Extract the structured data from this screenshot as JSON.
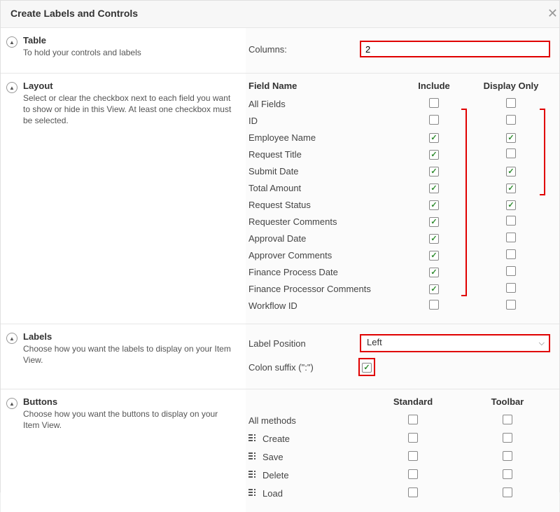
{
  "dialog": {
    "title": "Create Labels and Controls",
    "close_glyph": "✕"
  },
  "table_section": {
    "title": "Table",
    "desc": "To hold your controls and labels",
    "columns_label": "Columns:",
    "columns_value": "2",
    "highlight_columns": true
  },
  "layout_section": {
    "title": "Layout",
    "desc": "Select or clear the checkbox next to each field you want to show or hide in this View. At least one checkbox must be selected.",
    "header_name": "Field Name",
    "header_include": "Include",
    "header_display_only": "Display Only",
    "fields": [
      {
        "name": "All Fields",
        "include": false,
        "display_only": false
      },
      {
        "name": "ID",
        "include": false,
        "display_only": false
      },
      {
        "name": "Employee Name",
        "include": true,
        "display_only": true
      },
      {
        "name": "Request Title",
        "include": true,
        "display_only": false
      },
      {
        "name": "Submit Date",
        "include": true,
        "display_only": true
      },
      {
        "name": "Total Amount",
        "include": true,
        "display_only": true
      },
      {
        "name": "Request Status",
        "include": true,
        "display_only": true
      },
      {
        "name": "Requester Comments",
        "include": true,
        "display_only": false
      },
      {
        "name": "Approval Date",
        "include": true,
        "display_only": false
      },
      {
        "name": "Approver Comments",
        "include": true,
        "display_only": false
      },
      {
        "name": "Finance Process Date",
        "include": true,
        "display_only": false
      },
      {
        "name": "Finance Processor Comments",
        "include": true,
        "display_only": false
      },
      {
        "name": "Workflow ID",
        "include": false,
        "display_only": false
      }
    ],
    "bracket_colors": "#e00000"
  },
  "labels_section": {
    "title": "Labels",
    "desc": "Choose how you want the labels to display on your Item View.",
    "position_label": "Label Position",
    "position_value": "Left",
    "colon_label": "Colon suffix (\":\")",
    "colon_checked": true,
    "highlight_position": true,
    "highlight_colon": true
  },
  "buttons_section": {
    "title": "Buttons",
    "desc": "Choose how you want the buttons to display on your Item View.",
    "header_standard": "Standard",
    "header_toolbar": "Toolbar",
    "methods": [
      {
        "name": "All methods",
        "icon": false,
        "standard": false,
        "toolbar": false
      },
      {
        "name": "Create",
        "icon": true,
        "standard": false,
        "toolbar": false
      },
      {
        "name": "Save",
        "icon": true,
        "standard": false,
        "toolbar": false
      },
      {
        "name": "Delete",
        "icon": true,
        "standard": false,
        "toolbar": false
      },
      {
        "name": "Load",
        "icon": true,
        "standard": false,
        "toolbar": false
      }
    ]
  },
  "colors": {
    "highlight": "#e00000",
    "check": "#2e8b2e",
    "border": "#bbbbbb",
    "section_border": "#e6e6e6",
    "bg": "#fcfcfc"
  }
}
